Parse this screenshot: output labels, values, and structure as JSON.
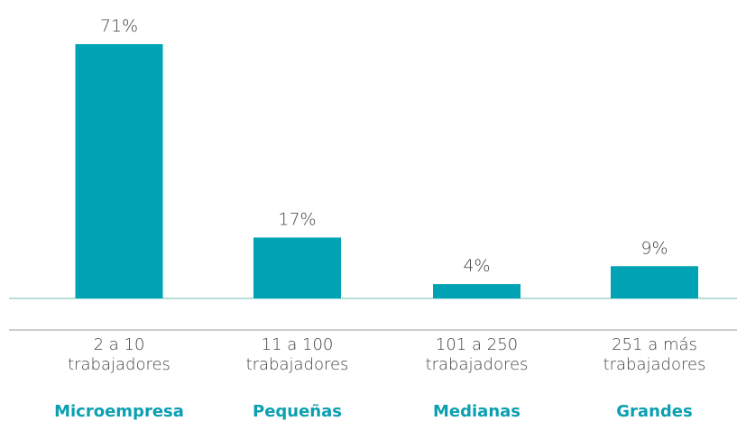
{
  "chart_data": {
    "type": "bar",
    "categories": [
      "2 a 10 trabajadores",
      "11 a 100 trabajadores",
      "101 a 250 trabajadores",
      "251 a más trabajadores"
    ],
    "groups": [
      "Microempresa",
      "Pequeñas",
      "Medianas",
      "Grandes"
    ],
    "values": [
      71,
      17,
      4,
      9
    ],
    "value_labels": [
      "71%",
      "17%",
      "4%",
      "9%"
    ],
    "color": "#00a3b4"
  }
}
